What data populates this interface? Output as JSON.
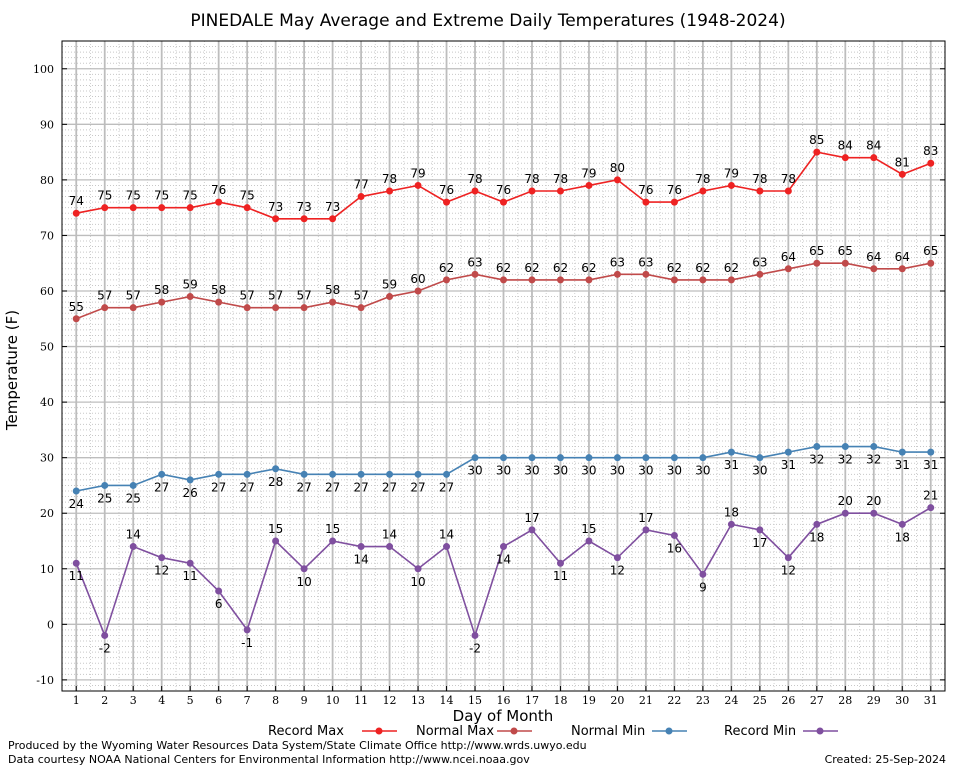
{
  "chart_data": {
    "type": "line",
    "title": "PINEDALE May Average and Extreme Daily Temperatures (1948-2024)",
    "xlabel": "Day of Month",
    "ylabel": "Temperature (F)",
    "x": [
      1,
      2,
      3,
      4,
      5,
      6,
      7,
      8,
      9,
      10,
      11,
      12,
      13,
      14,
      15,
      16,
      17,
      18,
      19,
      20,
      21,
      22,
      23,
      24,
      25,
      26,
      27,
      28,
      29,
      30,
      31
    ],
    "xlim": [
      0.5,
      31.5
    ],
    "ylim": [
      -12,
      105
    ],
    "yticks": [
      -10,
      0,
      10,
      20,
      30,
      40,
      50,
      60,
      70,
      80,
      90,
      100
    ],
    "grid": true,
    "legend_placement": "bottom",
    "series": [
      {
        "name": "Record Max",
        "color": "#ee2222",
        "values": [
          74,
          75,
          75,
          75,
          75,
          76,
          75,
          73,
          73,
          73,
          77,
          78,
          79,
          76,
          78,
          76,
          78,
          78,
          79,
          80,
          76,
          76,
          78,
          79,
          78,
          78,
          85,
          84,
          84,
          81,
          83
        ]
      },
      {
        "name": "Normal Max",
        "color": "#c04a4a",
        "values": [
          55,
          57,
          57,
          58,
          59,
          58,
          57,
          57,
          57,
          58,
          57,
          59,
          60,
          62,
          63,
          62,
          62,
          62,
          62,
          63,
          63,
          62,
          62,
          62,
          63,
          64,
          65,
          65,
          64,
          64,
          65
        ]
      },
      {
        "name": "Normal Min",
        "color": "#4682b4",
        "values": [
          24,
          25,
          25,
          27,
          26,
          27,
          27,
          28,
          27,
          27,
          27,
          27,
          27,
          27,
          30,
          30,
          30,
          30,
          30,
          30,
          30,
          30,
          30,
          31,
          30,
          31,
          32,
          32,
          32,
          31,
          31
        ]
      },
      {
        "name": "Record Min",
        "color": "#7f4f9f",
        "values": [
          11,
          -2,
          14,
          12,
          11,
          6,
          -1,
          15,
          10,
          15,
          14,
          14,
          10,
          14,
          -2,
          14,
          17,
          11,
          15,
          12,
          17,
          16,
          9,
          18,
          17,
          12,
          18,
          20,
          20,
          18,
          21
        ]
      }
    ]
  },
  "footer": {
    "produced_by": "Produced by the Wyoming Water Resources Data System/State Climate Office http://www.wrds.uwyo.edu",
    "courtesy": "Data courtesy NOAA National Centers for Environmental Information http://www.ncei.noaa.gov",
    "created": "Created:  25-Sep-2024"
  }
}
